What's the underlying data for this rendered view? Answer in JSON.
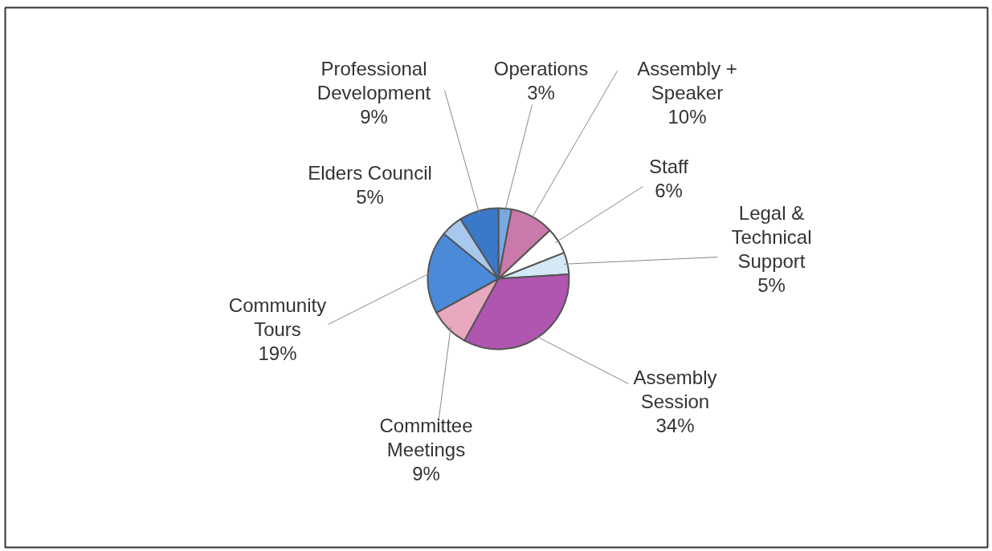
{
  "chart_data": {
    "type": "pie",
    "categories": [
      "Operations",
      "Assembly +\nSpeaker",
      "Staff",
      "Legal &\nTechnical\nSupport",
      "Assembly\nSession",
      "Committee\nMeetings",
      "Community\nTours",
      "Elders Council",
      "Professional\nDevelopment"
    ],
    "values": [
      3,
      10,
      6,
      5,
      34,
      9,
      19,
      5,
      9
    ],
    "value_labels": [
      "3%",
      "10%",
      "6%",
      "5%",
      "34%",
      "9%",
      "19%",
      "5%",
      "9%"
    ],
    "colors": [
      "#7aa8e0",
      "#c97aaa",
      "#ffffff",
      "#d4e8f5",
      "#b055b0",
      "#e8a8c0",
      "#4a8ad8",
      "#a8c8ee",
      "#3a78c8"
    ]
  }
}
